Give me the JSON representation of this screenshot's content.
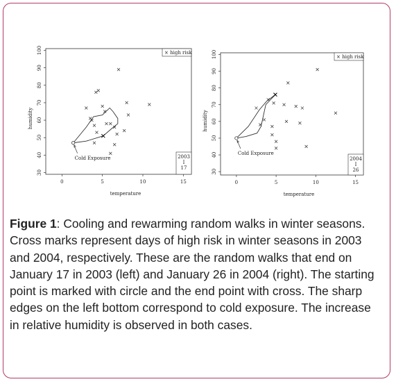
{
  "caption": {
    "label": "Figure 1",
    "text": ": Cooling and rewarming random walks in winter seasons. Cross marks represent days of high risk in winter seasons in 2003 and 2004, respectively. These are the random walks that end on January 17 in 2003 (left) and January 26 in 2004 (right). The starting point is marked with circle and the end point with cross. The sharp edges on the left bottom correspond to cold exposure. The increase in relative humidity is observed in both cases."
  },
  "chart_data": [
    {
      "type": "scatter",
      "xlabel": "temperature",
      "ylabel": "humidity",
      "xlim": [
        -2,
        16
      ],
      "ylim": [
        29,
        101
      ],
      "x_ticks": [
        "0",
        "5",
        "10",
        "15"
      ],
      "y_ticks": [
        "30",
        "40",
        "50",
        "60",
        "70",
        "80",
        "90",
        "100"
      ],
      "legend": "× high risk",
      "annotation": "Cold Exposure",
      "date_box": [
        "2003",
        "I",
        "17"
      ],
      "high_risk_points": [
        {
          "x": 3.0,
          "y": 67
        },
        {
          "x": 3.5,
          "y": 61
        },
        {
          "x": 3.7,
          "y": 60
        },
        {
          "x": 4.2,
          "y": 76
        },
        {
          "x": 4.5,
          "y": 77
        },
        {
          "x": 4.0,
          "y": 57
        },
        {
          "x": 4.3,
          "y": 53
        },
        {
          "x": 5.0,
          "y": 68
        },
        {
          "x": 5.3,
          "y": 65
        },
        {
          "x": 5.5,
          "y": 58
        },
        {
          "x": 6.0,
          "y": 58
        },
        {
          "x": 6.5,
          "y": 56
        },
        {
          "x": 4.0,
          "y": 47
        },
        {
          "x": 6.0,
          "y": 41
        },
        {
          "x": 6.5,
          "y": 46
        },
        {
          "x": 6.8,
          "y": 52
        },
        {
          "x": 7.0,
          "y": 89
        },
        {
          "x": 7.7,
          "y": 54
        },
        {
          "x": 8.0,
          "y": 70
        },
        {
          "x": 8.2,
          "y": 63
        },
        {
          "x": 10.8,
          "y": 69
        }
      ],
      "walk": [
        {
          "x": 1.4,
          "y": 47
        },
        {
          "x": 3.0,
          "y": 56
        },
        {
          "x": 3.9,
          "y": 62
        },
        {
          "x": 5.0,
          "y": 63
        },
        {
          "x": 5.9,
          "y": 67
        },
        {
          "x": 6.3,
          "y": 65
        },
        {
          "x": 6.9,
          "y": 61
        },
        {
          "x": 6.9,
          "y": 58
        },
        {
          "x": 6.1,
          "y": 55
        },
        {
          "x": 5.1,
          "y": 51
        },
        {
          "x": 3.0,
          "y": 48
        },
        {
          "x": 1.4,
          "y": 47
        }
      ],
      "cold_exposure_arrow_to": {
        "x": 1.4,
        "y": 47
      }
    },
    {
      "type": "scatter",
      "xlabel": "temperature",
      "ylabel": "humidity",
      "xlim": [
        -2,
        16
      ],
      "ylim": [
        28,
        101
      ],
      "x_ticks": [
        "0",
        "5",
        "10",
        "15"
      ],
      "y_ticks": [
        "30",
        "40",
        "50",
        "60",
        "70",
        "80",
        "90",
        "100"
      ],
      "legend": "× high risk",
      "annotation": "Cold Exposure",
      "date_box": [
        "2004",
        "I",
        "26"
      ],
      "high_risk_points": [
        {
          "x": 2.5,
          "y": 68
        },
        {
          "x": 3.0,
          "y": 58
        },
        {
          "x": 3.5,
          "y": 61
        },
        {
          "x": 4.0,
          "y": 73
        },
        {
          "x": 4.5,
          "y": 57
        },
        {
          "x": 4.5,
          "y": 52
        },
        {
          "x": 4.7,
          "y": 71
        },
        {
          "x": 5.0,
          "y": 44
        },
        {
          "x": 5.0,
          "y": 48
        },
        {
          "x": 6.0,
          "y": 70
        },
        {
          "x": 6.5,
          "y": 83
        },
        {
          "x": 6.3,
          "y": 60
        },
        {
          "x": 7.5,
          "y": 69
        },
        {
          "x": 8.0,
          "y": 59
        },
        {
          "x": 8.3,
          "y": 68
        },
        {
          "x": 8.8,
          "y": 45
        },
        {
          "x": 10.2,
          "y": 91
        },
        {
          "x": 12.5,
          "y": 65
        }
      ],
      "walk": [
        {
          "x": 0.0,
          "y": 50
        },
        {
          "x": 1.5,
          "y": 57
        },
        {
          "x": 2.9,
          "y": 67
        },
        {
          "x": 3.8,
          "y": 72
        },
        {
          "x": 4.9,
          "y": 76
        },
        {
          "x": 3.7,
          "y": 70
        },
        {
          "x": 3.1,
          "y": 57
        },
        {
          "x": 2.6,
          "y": 53
        },
        {
          "x": 1.2,
          "y": 51
        },
        {
          "x": 0.0,
          "y": 50
        }
      ],
      "cold_exposure_arrow_to": {
        "x": 0.0,
        "y": 50
      }
    }
  ]
}
